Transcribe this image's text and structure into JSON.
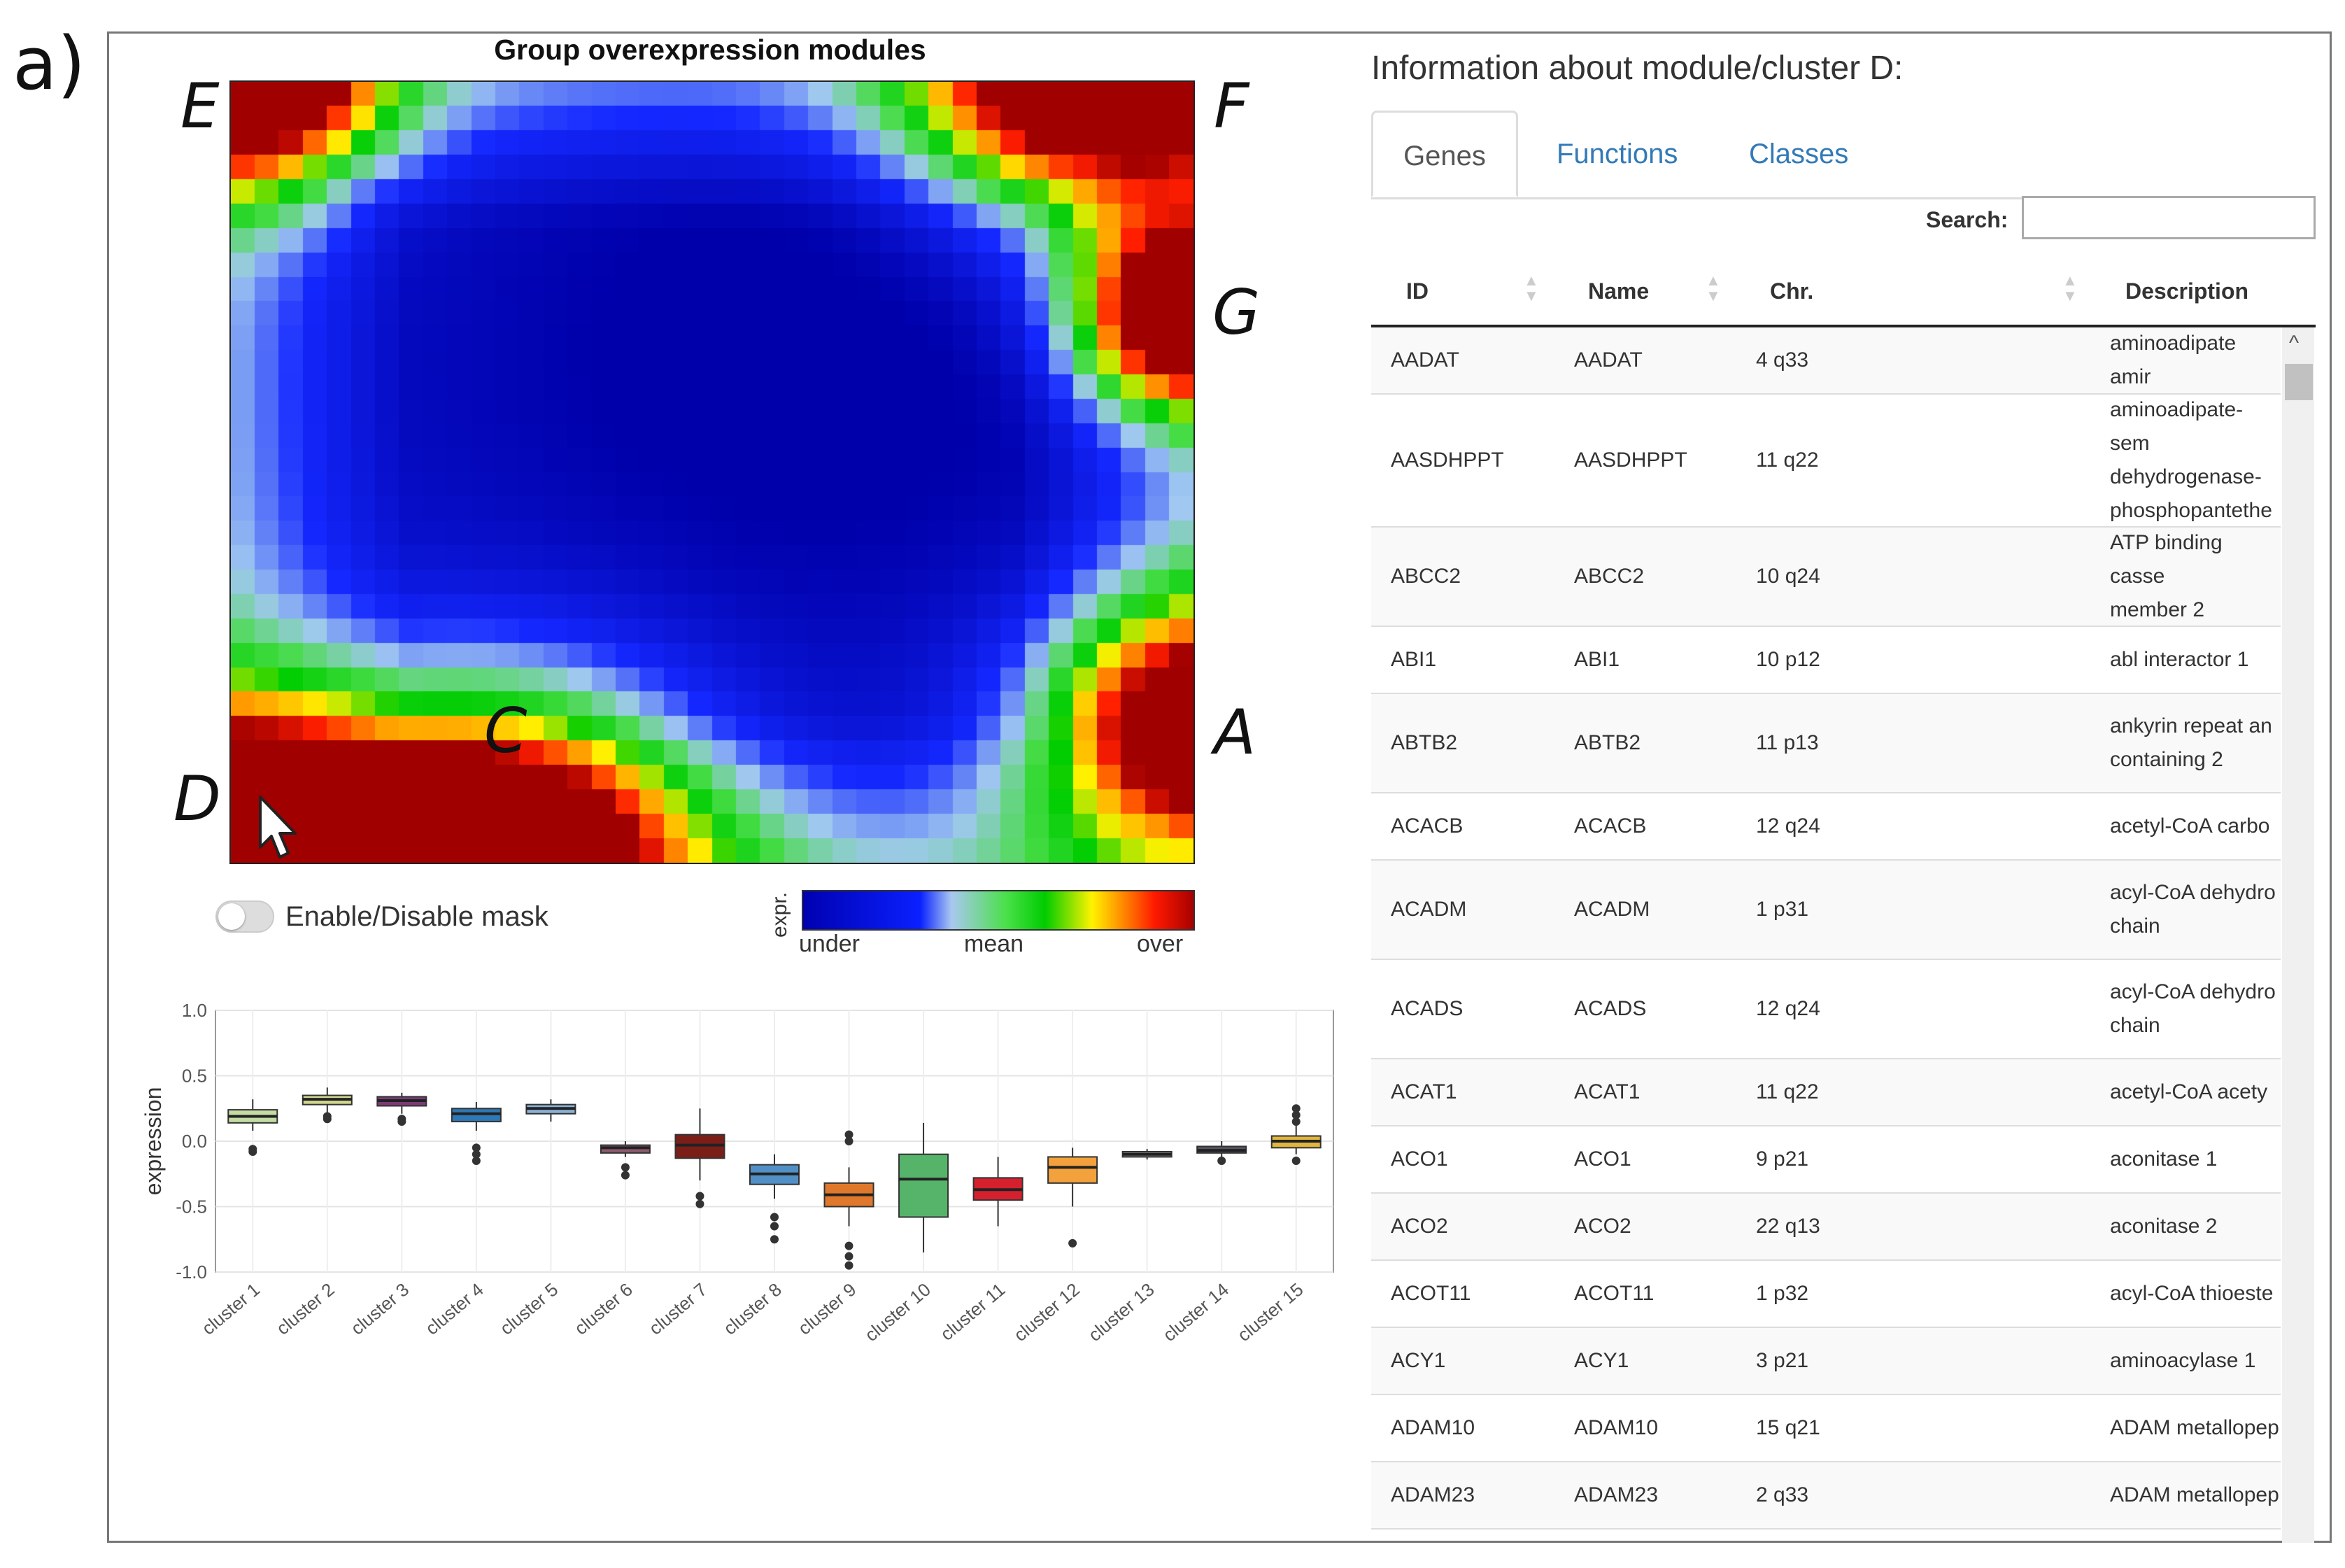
{
  "panel_label": "a)",
  "heatmap": {
    "title": "Group overexpression modules",
    "corner_labels": {
      "E": "E",
      "F": "F",
      "G": "G",
      "A": "A",
      "C": "C",
      "D": "D"
    }
  },
  "mask_toggle": {
    "label": "Enable/Disable mask",
    "enabled": false
  },
  "color_key": {
    "title": "expr.",
    "low": "under",
    "mid": "mean",
    "high": "over"
  },
  "chart_data": {
    "type": "box",
    "ylabel": "expression",
    "xlabel": "",
    "ylim": [
      -1.0,
      1.0
    ],
    "yticks": [
      1.0,
      0.5,
      0.0,
      -0.5,
      -1.0
    ],
    "ytick_labels": [
      "1.0",
      "0.5",
      "0.0",
      "-0.5",
      "-1.0"
    ],
    "grid": true,
    "categories": [
      "cluster 1",
      "cluster 2",
      "cluster 3",
      "cluster 4",
      "cluster 5",
      "cluster 6",
      "cluster 7",
      "cluster 8",
      "cluster 9",
      "cluster 10",
      "cluster 11",
      "cluster 12",
      "cluster 13",
      "cluster 14",
      "cluster 15"
    ],
    "boxes": [
      {
        "q1": 0.14,
        "median": 0.19,
        "q3": 0.24,
        "wlo": 0.08,
        "whi": 0.32,
        "outliers": [
          -0.06,
          -0.08
        ],
        "color": "#c5dba4"
      },
      {
        "q1": 0.28,
        "median": 0.32,
        "q3": 0.35,
        "wlo": 0.22,
        "whi": 0.41,
        "outliers": [
          0.19,
          0.17
        ],
        "color": "#d2d98e"
      },
      {
        "q1": 0.27,
        "median": 0.31,
        "q3": 0.34,
        "wlo": 0.21,
        "whi": 0.37,
        "outliers": [
          0.17,
          0.15
        ],
        "color": "#7b3b78"
      },
      {
        "q1": 0.15,
        "median": 0.21,
        "q3": 0.25,
        "wlo": 0.08,
        "whi": 0.3,
        "outliers": [
          -0.05,
          -0.1,
          -0.15
        ],
        "color": "#2d78b6"
      },
      {
        "q1": 0.21,
        "median": 0.25,
        "q3": 0.28,
        "wlo": 0.15,
        "whi": 0.32,
        "outliers": [],
        "color": "#8ab2d8"
      },
      {
        "q1": -0.09,
        "median": -0.05,
        "q3": -0.03,
        "wlo": -0.12,
        "whi": 0.0,
        "outliers": [
          -0.2,
          -0.26
        ],
        "color": "#8c5a6e"
      },
      {
        "q1": -0.13,
        "median": -0.03,
        "q3": 0.05,
        "wlo": -0.3,
        "whi": 0.25,
        "outliers": [
          -0.42,
          -0.48
        ],
        "color": "#7c1e18"
      },
      {
        "q1": -0.33,
        "median": -0.25,
        "q3": -0.18,
        "wlo": -0.44,
        "whi": -0.1,
        "outliers": [
          -0.58,
          -0.65,
          -0.75
        ],
        "color": "#5190c6"
      },
      {
        "q1": -0.5,
        "median": -0.41,
        "q3": -0.32,
        "wlo": -0.65,
        "whi": -0.2,
        "outliers": [
          -0.8,
          -0.88,
          -0.95,
          0.05,
          0.0
        ],
        "color": "#e0782c"
      },
      {
        "q1": -0.58,
        "median": -0.29,
        "q3": -0.1,
        "wlo": -0.85,
        "whi": 0.14,
        "outliers": [],
        "color": "#55b46a"
      },
      {
        "q1": -0.45,
        "median": -0.37,
        "q3": -0.28,
        "wlo": -0.65,
        "whi": -0.12,
        "outliers": [],
        "color": "#d6202e"
      },
      {
        "q1": -0.32,
        "median": -0.2,
        "q3": -0.12,
        "wlo": -0.5,
        "whi": -0.05,
        "outliers": [
          -0.78
        ],
        "color": "#f3a13c"
      },
      {
        "q1": -0.12,
        "median": -0.1,
        "q3": -0.08,
        "wlo": -0.14,
        "whi": -0.06,
        "outliers": [],
        "color": "#8a8a8a"
      },
      {
        "q1": -0.09,
        "median": -0.07,
        "q3": -0.04,
        "wlo": -0.14,
        "whi": 0.0,
        "outliers": [
          -0.15
        ],
        "color": "#556"
      },
      {
        "q1": -0.05,
        "median": 0.0,
        "q3": 0.04,
        "wlo": -0.1,
        "whi": 0.12,
        "outliers": [
          0.15,
          0.2,
          0.25,
          -0.15
        ],
        "color": "#e0b640"
      }
    ]
  },
  "info": {
    "title": "Information about module/cluster D:",
    "tabs": [
      {
        "label": "Genes"
      },
      {
        "label": "Functions"
      },
      {
        "label": "Classes"
      }
    ],
    "search": {
      "label": "Search:",
      "value": ""
    },
    "columns": [
      "ID",
      "Name",
      "Chr.",
      "Description"
    ],
    "rows": [
      {
        "id": "AADAT",
        "name": "AADAT",
        "chr": "4 q33",
        "desc": "aminoadipate amir"
      },
      {
        "id": "AASDHPPT",
        "name": "AASDHPPT",
        "chr": "11 q22",
        "desc": "aminoadipate-sem\ndehydrogenase-\nphosphopantethe"
      },
      {
        "id": "ABCC2",
        "name": "ABCC2",
        "chr": "10 q24",
        "desc": "ATP binding casse\nmember 2"
      },
      {
        "id": "ABI1",
        "name": "ABI1",
        "chr": "10 p12",
        "desc": "abl interactor 1"
      },
      {
        "id": "ABTB2",
        "name": "ABTB2",
        "chr": "11 p13",
        "desc": "ankyrin repeat an\ncontaining 2"
      },
      {
        "id": "ACACB",
        "name": "ACACB",
        "chr": "12 q24",
        "desc": "acetyl-CoA carbo"
      },
      {
        "id": "ACADM",
        "name": "ACADM",
        "chr": "1 p31",
        "desc": "acyl-CoA dehydro\nchain"
      },
      {
        "id": "ACADS",
        "name": "ACADS",
        "chr": "12 q24",
        "desc": "acyl-CoA dehydro\nchain"
      },
      {
        "id": "ACAT1",
        "name": "ACAT1",
        "chr": "11 q22",
        "desc": "acetyl-CoA acety"
      },
      {
        "id": "ACO1",
        "name": "ACO1",
        "chr": "9 p21",
        "desc": "aconitase 1"
      },
      {
        "id": "ACO2",
        "name": "ACO2",
        "chr": "22 q13",
        "desc": "aconitase 2"
      },
      {
        "id": "ACOT11",
        "name": "ACOT11",
        "chr": "1 p32",
        "desc": "acyl-CoA thioeste"
      },
      {
        "id": "ACY1",
        "name": "ACY1",
        "chr": "3 p21",
        "desc": "aminoacylase 1"
      },
      {
        "id": "ADAM10",
        "name": "ADAM10",
        "chr": "15 q21",
        "desc": "ADAM metallopep"
      },
      {
        "id": "ADAM23",
        "name": "ADAM23",
        "chr": "2 q33",
        "desc": "ADAM metallopep"
      }
    ]
  }
}
